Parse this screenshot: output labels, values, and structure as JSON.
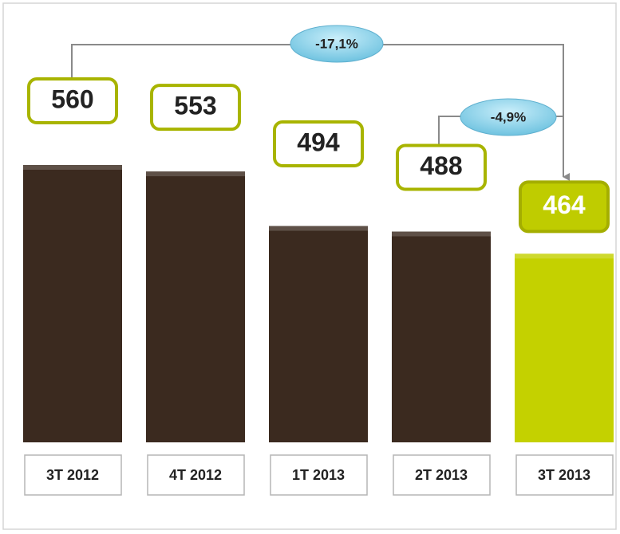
{
  "chart_data": {
    "type": "bar",
    "categories": [
      "3T 2012",
      "4T 2012",
      "1T 2013",
      "2T 2013",
      "3T 2013"
    ],
    "values": [
      560,
      553,
      494,
      488,
      464
    ],
    "colors": [
      "#3b2a1f",
      "#3b2a1f",
      "#3b2a1f",
      "#3b2a1f",
      "#c4d100"
    ],
    "ylim": [
      260,
      560
    ],
    "annotations": [
      "-17,1%",
      "-4,9%"
    ]
  }
}
